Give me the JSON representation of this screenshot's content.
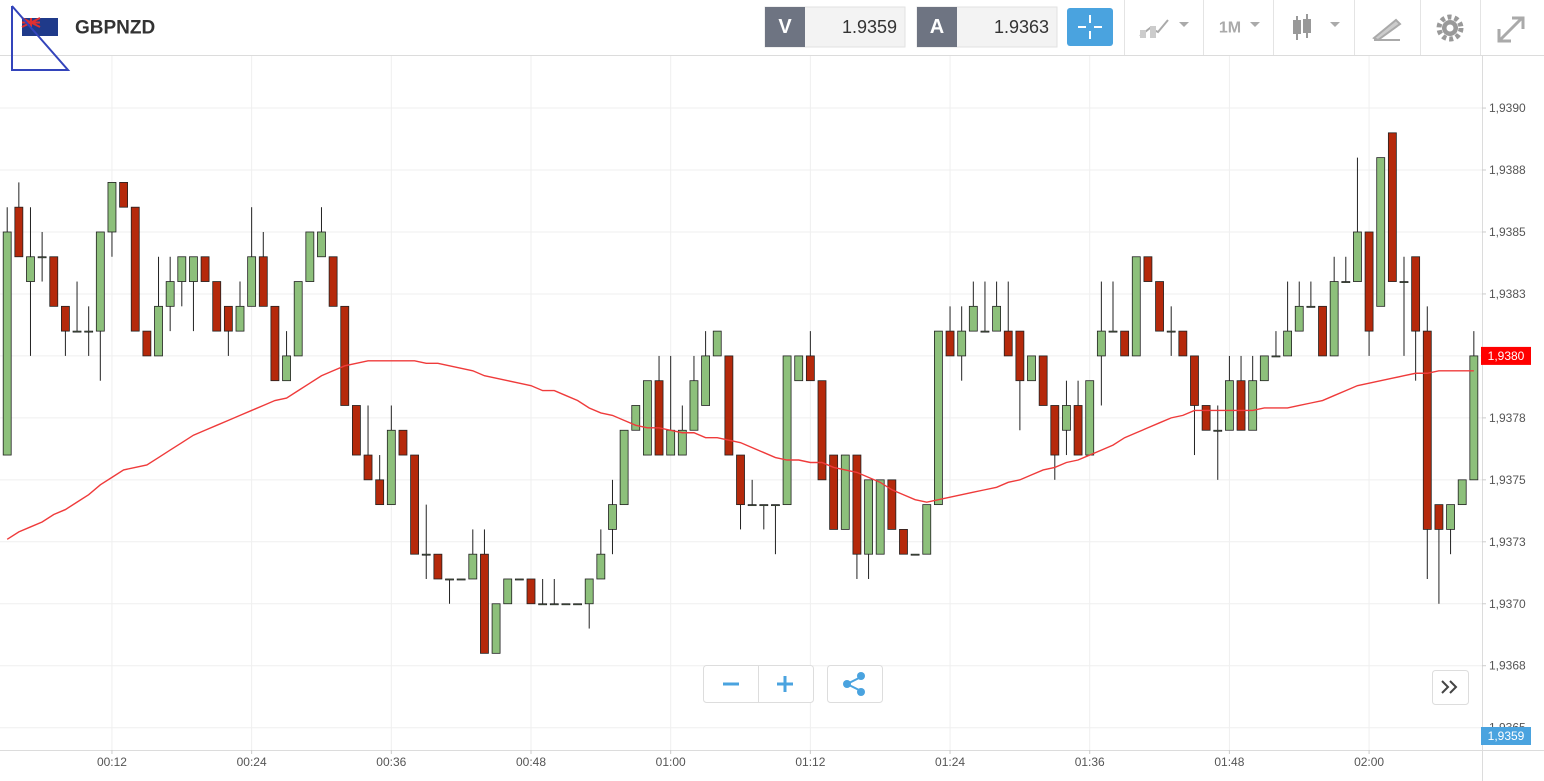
{
  "toolbar": {
    "symbol": "GBPNZD",
    "bid_label": "V",
    "bid": 1.9359,
    "ask_label": "A",
    "ask": 1.9363,
    "timeframe": "1M"
  },
  "chart_data": {
    "type": "candlestick",
    "categories": [
      null,
      null,
      null,
      null,
      null,
      null,
      null,
      null,
      null,
      "00:12",
      null,
      null,
      null,
      null,
      null,
      null,
      null,
      null,
      null,
      null,
      null,
      "00:24",
      null,
      null,
      null,
      null,
      null,
      null,
      null,
      null,
      null,
      null,
      null,
      "00:36",
      null,
      null,
      null,
      null,
      null,
      null,
      null,
      null,
      null,
      null,
      null,
      "00:48",
      null,
      null,
      null,
      null,
      null,
      null,
      null,
      null,
      null,
      null,
      null,
      "01:00",
      null,
      null,
      null,
      null,
      null,
      null,
      null,
      null,
      null,
      null,
      null,
      "01:12",
      null,
      null,
      null,
      null,
      null,
      null,
      null,
      null,
      null,
      null,
      null,
      "01:24",
      null,
      null,
      null,
      null,
      null,
      null,
      null,
      null,
      null,
      null,
      null,
      "01:36",
      null,
      null,
      null,
      null,
      null,
      null,
      null,
      null,
      null,
      null,
      null,
      "01:48",
      null,
      null,
      null,
      null,
      null,
      null,
      null,
      null,
      null,
      null,
      null,
      "02:00",
      null,
      null,
      null,
      null,
      null,
      null,
      null,
      null,
      null
    ],
    "open": [
      1.9376,
      1.9386,
      1.9383,
      1.9384,
      1.9384,
      1.9382,
      1.9381,
      1.9381,
      1.9381,
      1.9385,
      1.9387,
      1.9386,
      1.9381,
      1.938,
      1.9382,
      1.9383,
      1.9383,
      1.9384,
      1.9383,
      1.9382,
      1.9381,
      1.9382,
      1.9384,
      1.9382,
      1.9379,
      1.938,
      1.9383,
      1.9384,
      1.9384,
      1.9382,
      1.9378,
      1.9376,
      1.9375,
      1.9374,
      1.9377,
      1.9376,
      1.9372,
      1.9372,
      1.9371,
      1.9371,
      1.9371,
      1.9372,
      1.9368,
      1.937,
      1.9371,
      1.9371,
      1.937,
      1.937,
      1.937,
      1.937,
      1.937,
      1.9371,
      1.9373,
      1.9374,
      1.9377,
      1.9376,
      1.9379,
      1.9376,
      1.9376,
      1.9377,
      1.9378,
      1.938,
      1.938,
      1.9376,
      1.9374,
      1.9374,
      1.9374,
      1.9374,
      1.9379,
      1.938,
      1.9379,
      1.9376,
      1.9373,
      1.9376,
      1.9372,
      1.9372,
      1.9375,
      1.9373,
      1.9372,
      1.9372,
      1.9374,
      1.9381,
      1.938,
      1.9381,
      1.9381,
      1.9381,
      1.9381,
      1.9381,
      1.9379,
      1.938,
      1.9378,
      1.9377,
      1.9378,
      1.9376,
      1.938,
      1.9381,
      1.9381,
      1.938,
      1.9384,
      1.9383,
      1.9381,
      1.9381,
      1.938,
      1.9378,
      1.9377,
      1.9377,
      1.9379,
      1.9377,
      1.9379,
      1.938,
      1.938,
      1.9381,
      1.9382,
      1.9382,
      1.938,
      1.9383,
      1.9383,
      1.9385,
      1.9382,
      1.9389,
      1.9383,
      1.9384,
      1.9381,
      1.9374,
      1.9373,
      1.9374,
      1.9375
    ],
    "high": [
      1.9386,
      1.9387,
      1.9386,
      1.9385,
      1.9384,
      1.9382,
      1.9383,
      1.9382,
      1.9385,
      1.9387,
      1.9387,
      1.9386,
      1.9381,
      1.9384,
      1.9384,
      1.9384,
      1.9384,
      1.9384,
      1.9383,
      1.9382,
      1.9383,
      1.9386,
      1.9385,
      1.9382,
      1.9381,
      1.9383,
      1.9385,
      1.9386,
      1.9384,
      1.9382,
      1.9378,
      1.9378,
      1.9376,
      1.9378,
      1.9377,
      1.9376,
      1.9374,
      1.9372,
      1.9371,
      1.9371,
      1.9373,
      1.9373,
      1.937,
      1.9371,
      1.9371,
      1.9371,
      1.9371,
      1.9371,
      1.937,
      1.937,
      1.9371,
      1.9373,
      1.9375,
      1.9377,
      1.9378,
      1.9379,
      1.938,
      1.938,
      1.9378,
      1.938,
      1.9381,
      1.9381,
      1.938,
      1.9376,
      1.9375,
      1.9374,
      1.9374,
      1.938,
      1.938,
      1.9381,
      1.9379,
      1.9376,
      1.9376,
      1.9376,
      1.9375,
      1.9375,
      1.9375,
      1.9373,
      1.9372,
      1.9374,
      1.9381,
      1.9382,
      1.9382,
      1.9383,
      1.9383,
      1.9383,
      1.9383,
      1.9381,
      1.938,
      1.938,
      1.9378,
      1.9379,
      1.9379,
      1.9379,
      1.9383,
      1.9383,
      1.9381,
      1.9384,
      1.9384,
      1.9383,
      1.9382,
      1.9381,
      1.938,
      1.9378,
      1.9378,
      1.938,
      1.938,
      1.938,
      1.938,
      1.9381,
      1.9383,
      1.9383,
      1.9383,
      1.9382,
      1.9384,
      1.9384,
      1.9388,
      1.9385,
      1.9388,
      1.9389,
      1.9384,
      1.9384,
      1.9382,
      1.9374,
      1.9374,
      1.9375,
      1.9381
    ],
    "low": [
      1.9376,
      1.9384,
      1.938,
      1.9383,
      1.9382,
      1.938,
      1.9381,
      1.938,
      1.9379,
      1.9384,
      1.9386,
      1.9381,
      1.938,
      1.938,
      1.9381,
      1.9382,
      1.9381,
      1.9383,
      1.9381,
      1.938,
      1.9381,
      1.9382,
      1.9382,
      1.9379,
      1.9379,
      1.938,
      1.9383,
      1.9384,
      1.9382,
      1.9378,
      1.9376,
      1.9375,
      1.9374,
      1.9374,
      1.9376,
      1.9372,
      1.9371,
      1.9371,
      1.937,
      1.9371,
      1.9371,
      1.9368,
      1.9368,
      1.937,
      1.9371,
      1.937,
      1.937,
      1.937,
      1.937,
      1.937,
      1.9369,
      1.9371,
      1.9372,
      1.9374,
      1.9377,
      1.9376,
      1.9376,
      1.9376,
      1.9376,
      1.9377,
      1.9378,
      1.938,
      1.9376,
      1.9373,
      1.9374,
      1.9373,
      1.9372,
      1.9374,
      1.9379,
      1.9379,
      1.9375,
      1.9373,
      1.9373,
      1.9371,
      1.9371,
      1.9372,
      1.9373,
      1.9372,
      1.9372,
      1.9372,
      1.9374,
      1.938,
      1.9379,
      1.9381,
      1.9381,
      1.9381,
      1.938,
      1.9377,
      1.9379,
      1.9378,
      1.9375,
      1.9376,
      1.9376,
      1.9376,
      1.9378,
      1.9381,
      1.938,
      1.938,
      1.9383,
      1.9381,
      1.938,
      1.938,
      1.9376,
      1.9377,
      1.9375,
      1.9377,
      1.9377,
      1.9377,
      1.9379,
      1.938,
      1.938,
      1.9381,
      1.9382,
      1.938,
      1.938,
      1.9383,
      1.9383,
      1.938,
      1.9382,
      1.9383,
      1.938,
      1.9379,
      1.9371,
      1.937,
      1.9372,
      1.9374,
      1.9375
    ],
    "close": [
      1.9385,
      1.9384,
      1.9384,
      1.9384,
      1.9382,
      1.9381,
      1.9381,
      1.9381,
      1.9385,
      1.9387,
      1.9386,
      1.9381,
      1.938,
      1.9382,
      1.9383,
      1.9384,
      1.9384,
      1.9383,
      1.9381,
      1.9381,
      1.9382,
      1.9384,
      1.9382,
      1.9379,
      1.938,
      1.9383,
      1.9385,
      1.9385,
      1.9382,
      1.9378,
      1.9376,
      1.9375,
      1.9374,
      1.9377,
      1.9376,
      1.9372,
      1.9372,
      1.9371,
      1.9371,
      1.9371,
      1.9372,
      1.9368,
      1.937,
      1.9371,
      1.9371,
      1.937,
      1.937,
      1.937,
      1.937,
      1.937,
      1.9371,
      1.9372,
      1.9374,
      1.9377,
      1.9378,
      1.9379,
      1.9376,
      1.9377,
      1.9377,
      1.9379,
      1.938,
      1.9381,
      1.9376,
      1.9374,
      1.9374,
      1.9374,
      1.9374,
      1.938,
      1.938,
      1.9379,
      1.9375,
      1.9373,
      1.9376,
      1.9372,
      1.9375,
      1.9375,
      1.9373,
      1.9372,
      1.9372,
      1.9374,
      1.9381,
      1.938,
      1.9381,
      1.9382,
      1.9381,
      1.9382,
      1.938,
      1.9379,
      1.938,
      1.9378,
      1.9376,
      1.9378,
      1.9376,
      1.9379,
      1.9381,
      1.9381,
      1.938,
      1.9384,
      1.9383,
      1.9381,
      1.9381,
      1.938,
      1.9378,
      1.9377,
      1.9377,
      1.9379,
      1.9377,
      1.9379,
      1.938,
      1.938,
      1.9381,
      1.9382,
      1.9382,
      1.938,
      1.9383,
      1.9383,
      1.9385,
      1.9381,
      1.9388,
      1.9383,
      1.9383,
      1.9381,
      1.9373,
      1.9373,
      1.9374,
      1.9375,
      1.938
    ],
    "up_color": "#8dc07b",
    "down_color": "#b5290b",
    "ma": {
      "color": "#ef3b3b",
      "values": [
        1.93726,
        1.93729,
        1.93731,
        1.93733,
        1.93736,
        1.93738,
        1.93741,
        1.93744,
        1.93748,
        1.93751,
        1.93754,
        1.93755,
        1.93756,
        1.93759,
        1.93762,
        1.93765,
        1.93768,
        1.9377,
        1.93772,
        1.93774,
        1.93776,
        1.93778,
        1.9378,
        1.93782,
        1.93783,
        1.93786,
        1.93789,
        1.93792,
        1.93794,
        1.93796,
        1.93797,
        1.93798,
        1.93798,
        1.93798,
        1.93798,
        1.93798,
        1.93797,
        1.93797,
        1.93796,
        1.93795,
        1.93794,
        1.93792,
        1.93791,
        1.9379,
        1.93789,
        1.93788,
        1.93786,
        1.93786,
        1.93784,
        1.93782,
        1.93779,
        1.93777,
        1.93776,
        1.93774,
        1.93772,
        1.93771,
        1.93771,
        1.9377,
        1.93769,
        1.93769,
        1.93767,
        1.93767,
        1.93766,
        1.93765,
        1.93763,
        1.93761,
        1.93759,
        1.93758,
        1.93758,
        1.93757,
        1.93757,
        1.93755,
        1.93754,
        1.93753,
        1.93751,
        1.93749,
        1.93746,
        1.93744,
        1.93742,
        1.93741,
        1.93742,
        1.93743,
        1.93744,
        1.93745,
        1.93746,
        1.93747,
        1.93749,
        1.9375,
        1.93752,
        1.93754,
        1.93755,
        1.93757,
        1.93758,
        1.9376,
        1.93762,
        1.93764,
        1.93767,
        1.93769,
        1.93771,
        1.93773,
        1.93775,
        1.93776,
        1.93778,
        1.93778,
        1.93778,
        1.93778,
        1.93778,
        1.93778,
        1.93779,
        1.93779,
        1.93779,
        1.9378,
        1.93781,
        1.93782,
        1.93784,
        1.93786,
        1.93788,
        1.93789,
        1.9379,
        1.93791,
        1.93792,
        1.93793,
        1.93793,
        1.93794,
        1.93794,
        1.93794,
        1.93794
      ]
    },
    "ylim": [
      1.93641,
      1.93921
    ],
    "yticks": [
      {
        "value": 1.9365,
        "label": "1,9365"
      },
      {
        "value": 1.93675,
        "label": "1,9368"
      },
      {
        "value": 1.937,
        "label": "1,9370"
      },
      {
        "value": 1.93725,
        "label": "1,9373"
      },
      {
        "value": 1.9375,
        "label": "1,9375"
      },
      {
        "value": 1.93775,
        "label": "1,9378"
      },
      {
        "value": 1.938,
        "label": "1,9380"
      },
      {
        "value": 1.93825,
        "label": "1,9383"
      },
      {
        "value": 1.9385,
        "label": "1,9385"
      },
      {
        "value": 1.93875,
        "label": "1,9388"
      },
      {
        "value": 1.939,
        "label": "1,9390"
      }
    ],
    "grid": true,
    "price_labels": [
      {
        "value": 1.938,
        "label": "1,9380",
        "color": "#ff0000"
      },
      {
        "value": 1.9359,
        "label": "1,9359",
        "color": "#4aa3df"
      }
    ]
  }
}
